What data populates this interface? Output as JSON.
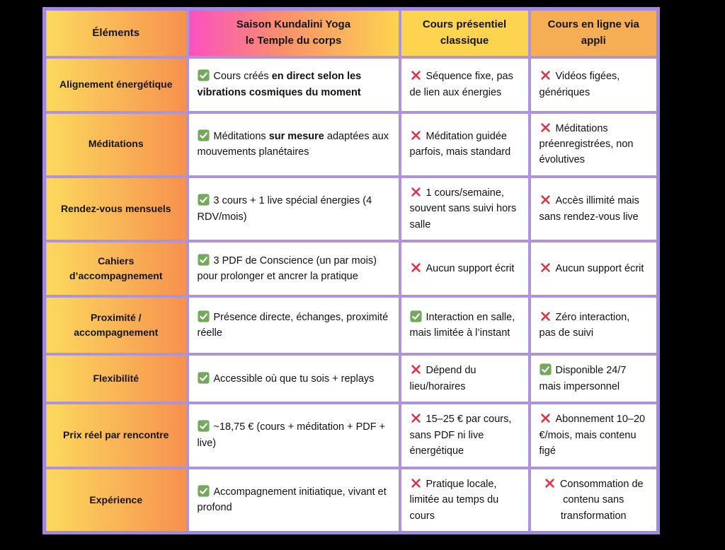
{
  "columns": [
    {
      "label": "Éléments"
    },
    {
      "label": "Saison Kundalini Yoga\nle Temple du corps"
    },
    {
      "label": "Cours présentiel\nclassique"
    },
    {
      "label": "Cours en ligne via\nappli"
    }
  ],
  "rows": [
    {
      "label": "Alignement énergétique",
      "cells": [
        {
          "icon": "check",
          "segments": [
            {
              "t": "Cours créés "
            },
            {
              "t": "en direct selon les vibrations cosmiques du moment",
              "b": true
            }
          ]
        },
        {
          "icon": "cross",
          "segments": [
            {
              "t": "Séquence fixe, pas de lien aux énergies"
            }
          ]
        },
        {
          "icon": "cross",
          "segments": [
            {
              "t": "Vidéos figées, génériques"
            }
          ]
        }
      ]
    },
    {
      "label": "Méditations",
      "cells": [
        {
          "icon": "check",
          "segments": [
            {
              "t": "Méditations "
            },
            {
              "t": "sur mesure",
              "b": true
            },
            {
              "t": " adaptées aux mouvements planétaires"
            }
          ]
        },
        {
          "icon": "cross",
          "segments": [
            {
              "t": "Méditation guidée parfois, mais standard"
            }
          ]
        },
        {
          "icon": "cross",
          "segments": [
            {
              "t": "Méditations préenregistrées, non évolutives"
            }
          ]
        }
      ]
    },
    {
      "label": "Rendez-vous mensuels",
      "cells": [
        {
          "icon": "check",
          "segments": [
            {
              "t": "3 cours + 1 live spécial énergies (4 RDV/mois)"
            }
          ]
        },
        {
          "icon": "cross",
          "segments": [
            {
              "t": "1 cours/semaine, souvent sans suivi hors salle"
            }
          ]
        },
        {
          "icon": "cross",
          "segments": [
            {
              "t": "Accès illimité mais sans rendez-vous live"
            }
          ]
        }
      ]
    },
    {
      "label": "Cahiers d’accompagnement",
      "cells": [
        {
          "icon": "check",
          "segments": [
            {
              "t": "3 PDF de Conscience (un par mois) pour prolonger et ancrer la pratique"
            }
          ]
        },
        {
          "icon": "cross",
          "segments": [
            {
              "t": "Aucun support écrit"
            }
          ]
        },
        {
          "icon": "cross",
          "segments": [
            {
              "t": "Aucun support écrit"
            }
          ]
        }
      ]
    },
    {
      "label": "Proximité /\naccompagnement",
      "cells": [
        {
          "icon": "check",
          "segments": [
            {
              "t": "Présence directe, échanges, proximité réelle"
            }
          ]
        },
        {
          "icon": "check",
          "segments": [
            {
              "t": "Interaction en salle, mais limitée à l’instant"
            }
          ]
        },
        {
          "icon": "cross",
          "segments": [
            {
              "t": "Zéro interaction, pas de suivi"
            }
          ]
        }
      ]
    },
    {
      "label": "Flexibilité",
      "cells": [
        {
          "icon": "check",
          "segments": [
            {
              "t": "Accessible où que tu sois + replays"
            }
          ]
        },
        {
          "icon": "cross",
          "segments": [
            {
              "t": "Dépend du lieu/horaires"
            }
          ]
        },
        {
          "icon": "check",
          "segments": [
            {
              "t": "Disponible 24/7 mais impersonnel"
            }
          ]
        }
      ]
    },
    {
      "label": "Prix réel par rencontre",
      "cells": [
        {
          "icon": "check",
          "segments": [
            {
              "t": "~18,75 € (cours + méditation + PDF + live)"
            }
          ]
        },
        {
          "icon": "cross",
          "segments": [
            {
              "t": "15–25 € par cours, sans PDF ni live énergétique"
            }
          ]
        },
        {
          "icon": "cross",
          "segments": [
            {
              "t": "Abonnement 10–20 €/mois, mais contenu figé"
            }
          ]
        }
      ]
    },
    {
      "label": "Expérience",
      "cells": [
        {
          "icon": "check",
          "segments": [
            {
              "t": "Accompagnement initiatique, vivant et profond"
            }
          ]
        },
        {
          "icon": "cross",
          "segments": [
            {
              "t": "Pratique locale, limitée au temps du cours"
            }
          ]
        },
        {
          "icon": "cross",
          "align": "center",
          "segments": [
            {
              "t": "Consommation de contenu sans transformation"
            }
          ]
        }
      ]
    }
  ],
  "colors": {
    "background": "#000000",
    "border_outer": "#a18ae0",
    "border_inner": "#ad93dc",
    "label_gradient_start": "#fcd95e",
    "label_gradient_end": "#f6914e",
    "brand_gradient_start": "#fb50c0",
    "brand_gradient_mid": "#f9906c",
    "brand_gradient_end": "#fcd34f",
    "header_yellow": "#fcd44f",
    "header_orange": "#f6ae55",
    "cell_background": "#ffffff",
    "text": "#111111",
    "check_green": "#74a95d",
    "cross_red": "#dc3449"
  }
}
